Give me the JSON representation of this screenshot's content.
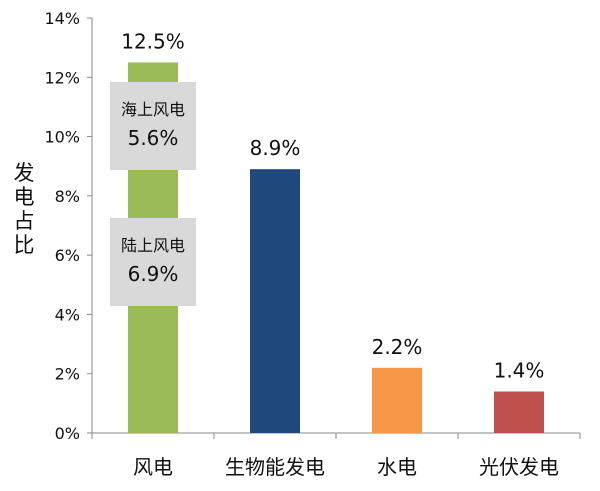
{
  "chart_data": {
    "type": "bar",
    "ylabel": "发电占比",
    "ylim": [
      0,
      14
    ],
    "yticks": [
      "0%",
      "2%",
      "4%",
      "6%",
      "8%",
      "10%",
      "12%",
      "14%"
    ],
    "categories": [
      "风电",
      "生物能发电",
      "水电",
      "光伏发电"
    ],
    "values": [
      12.5,
      8.9,
      2.2,
      1.4
    ],
    "value_labels": [
      "12.5%",
      "8.9%",
      "2.2%",
      "1.4%"
    ],
    "colors": [
      "#9bbb59",
      "#1f497d",
      "#f79646",
      "#c0504d"
    ],
    "grid": false,
    "annotations": [
      {
        "label": "海上风电",
        "value": 5.6,
        "value_label": "5.6%"
      },
      {
        "label": "陆上风电",
        "value": 6.9,
        "value_label": "6.9%"
      }
    ],
    "annotation_box_color": "#d9d9d9"
  }
}
